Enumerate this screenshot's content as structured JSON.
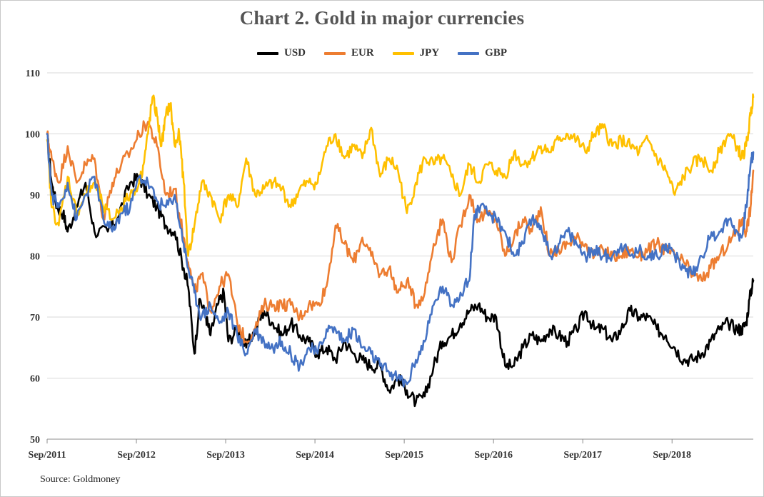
{
  "chart_data": {
    "type": "line",
    "title": "Chart 2. Gold in major currencies",
    "xlabel": "",
    "ylabel": "",
    "ylim": [
      50,
      110
    ],
    "yticks": [
      50,
      60,
      70,
      80,
      90,
      100,
      110
    ],
    "xlim": [
      2011.67,
      2019.58
    ],
    "xticks": [
      {
        "label": "Sep/2011",
        "x": 2011.67
      },
      {
        "label": "Sep/2012",
        "x": 2012.67
      },
      {
        "label": "Sep/2013",
        "x": 2013.67
      },
      {
        "label": "Sep/2014",
        "x": 2014.67
      },
      {
        "label": "Sep/2015",
        "x": 2015.67
      },
      {
        "label": "Sep/2016",
        "x": 2016.67
      },
      {
        "label": "Sep/2017",
        "x": 2017.67
      },
      {
        "label": "Sep/2018",
        "x": 2018.67
      }
    ],
    "grid": "horizontal",
    "legend": "top-center",
    "series": [
      {
        "name": "USD",
        "color": "#000000",
        "x": [
          2011.67,
          2011.72,
          2011.78,
          2011.85,
          2011.9,
          2012.0,
          2012.1,
          2012.2,
          2012.35,
          2012.45,
          2012.6,
          2012.7,
          2012.8,
          2012.9,
          2013.0,
          2013.1,
          2013.2,
          2013.25,
          2013.32,
          2013.38,
          2013.45,
          2013.5,
          2013.58,
          2013.65,
          2013.7,
          2013.8,
          2013.9,
          2014.0,
          2014.1,
          2014.2,
          2014.3,
          2014.4,
          2014.5,
          2014.6,
          2014.7,
          2014.8,
          2014.9,
          2015.0,
          2015.1,
          2015.2,
          2015.3,
          2015.4,
          2015.5,
          2015.6,
          2015.7,
          2015.8,
          2015.9,
          2016.0,
          2016.1,
          2016.2,
          2016.3,
          2016.4,
          2016.5,
          2016.6,
          2016.7,
          2016.8,
          2016.9,
          2017.0,
          2017.1,
          2017.2,
          2017.3,
          2017.4,
          2017.5,
          2017.6,
          2017.7,
          2017.8,
          2017.9,
          2018.0,
          2018.1,
          2018.2,
          2018.3,
          2018.4,
          2018.5,
          2018.6,
          2018.7,
          2018.8,
          2018.9,
          2019.0,
          2019.1,
          2019.2,
          2019.3,
          2019.4,
          2019.45,
          2019.5,
          2019.55,
          2019.58
        ],
        "values": [
          100,
          92,
          88,
          87,
          84,
          88,
          92,
          84,
          84,
          86,
          92,
          93,
          90,
          88,
          85,
          84,
          78,
          75,
          64,
          73,
          70,
          67,
          72,
          74,
          66,
          68,
          65,
          68,
          71,
          69,
          67,
          69,
          67,
          66,
          64,
          65,
          63,
          66,
          64,
          63,
          62,
          62,
          58,
          60,
          58,
          56,
          57,
          62,
          66,
          67,
          69,
          71,
          72,
          70,
          70,
          62,
          62,
          65,
          67,
          66,
          68,
          67,
          66,
          68,
          71,
          68,
          68,
          66,
          68,
          71,
          70,
          70,
          68,
          67,
          65,
          63,
          63,
          64,
          66,
          68,
          69,
          68,
          68,
          69,
          74,
          76
        ]
      },
      {
        "name": "EUR",
        "color": "#ED7D31",
        "x": [
          2011.67,
          2011.72,
          2011.8,
          2011.9,
          2012.0,
          2012.1,
          2012.2,
          2012.3,
          2012.4,
          2012.5,
          2012.6,
          2012.7,
          2012.8,
          2012.9,
          2013.0,
          2013.1,
          2013.2,
          2013.25,
          2013.32,
          2013.4,
          2013.5,
          2013.6,
          2013.7,
          2013.8,
          2013.9,
          2014.0,
          2014.1,
          2014.2,
          2014.3,
          2014.4,
          2014.5,
          2014.6,
          2014.7,
          2014.8,
          2014.9,
          2015.0,
          2015.1,
          2015.2,
          2015.3,
          2015.4,
          2015.5,
          2015.6,
          2015.7,
          2015.8,
          2015.9,
          2016.0,
          2016.1,
          2016.2,
          2016.3,
          2016.4,
          2016.5,
          2016.6,
          2016.7,
          2016.8,
          2016.9,
          2017.0,
          2017.1,
          2017.2,
          2017.3,
          2017.4,
          2017.5,
          2017.6,
          2017.7,
          2017.8,
          2017.9,
          2018.0,
          2018.1,
          2018.2,
          2018.3,
          2018.4,
          2018.5,
          2018.6,
          2018.7,
          2018.8,
          2018.9,
          2019.0,
          2019.1,
          2019.2,
          2019.3,
          2019.4,
          2019.45,
          2019.5,
          2019.55,
          2019.58
        ],
        "values": [
          100,
          96,
          92,
          98,
          92,
          95,
          96,
          86,
          92,
          95,
          97,
          100,
          102,
          98,
          90,
          91,
          83,
          79,
          74,
          77,
          71,
          75,
          77,
          69,
          66,
          68,
          72,
          72,
          72,
          72,
          70,
          72,
          72,
          75,
          85,
          82,
          79,
          83,
          80,
          77,
          78,
          74,
          76,
          72,
          74,
          82,
          86,
          79,
          85,
          90,
          86,
          87,
          86,
          80,
          83,
          86,
          84,
          88,
          80,
          81,
          82,
          83,
          82,
          80,
          81,
          80,
          80,
          81,
          80,
          81,
          82,
          81,
          80,
          79,
          77,
          76,
          78,
          80,
          82,
          84,
          86,
          84,
          88,
          94
        ]
      },
      {
        "name": "JPY",
        "color": "#FFC000",
        "x": [
          2011.67,
          2011.72,
          2011.8,
          2011.9,
          2012.0,
          2012.1,
          2012.2,
          2012.3,
          2012.4,
          2012.5,
          2012.6,
          2012.7,
          2012.75,
          2012.8,
          2012.85,
          2012.9,
          2012.95,
          2013.0,
          2013.05,
          2013.1,
          2013.15,
          2013.2,
          2013.25,
          2013.32,
          2013.4,
          2013.5,
          2013.6,
          2013.7,
          2013.8,
          2013.9,
          2014.0,
          2014.1,
          2014.2,
          2014.3,
          2014.4,
          2014.5,
          2014.6,
          2014.7,
          2014.8,
          2014.9,
          2015.0,
          2015.1,
          2015.2,
          2015.3,
          2015.4,
          2015.5,
          2015.6,
          2015.7,
          2015.8,
          2015.9,
          2016.0,
          2016.1,
          2016.2,
          2016.3,
          2016.4,
          2016.5,
          2016.6,
          2016.7,
          2016.8,
          2016.9,
          2017.0,
          2017.1,
          2017.2,
          2017.3,
          2017.4,
          2017.5,
          2017.6,
          2017.7,
          2017.8,
          2017.9,
          2018.0,
          2018.1,
          2018.2,
          2018.3,
          2018.4,
          2018.5,
          2018.6,
          2018.7,
          2018.8,
          2018.9,
          2019.0,
          2019.1,
          2019.2,
          2019.3,
          2019.4,
          2019.45,
          2019.5,
          2019.55,
          2019.58
        ],
        "values": [
          99,
          88,
          85,
          93,
          87,
          90,
          92,
          88,
          86,
          88,
          90,
          92,
          95,
          100,
          106,
          103,
          98,
          103,
          105,
          98,
          100,
          92,
          80,
          85,
          92,
          90,
          86,
          90,
          88,
          96,
          90,
          91,
          92,
          91,
          88,
          91,
          92,
          92,
          98,
          100,
          96,
          98,
          96,
          101,
          93,
          96,
          94,
          87,
          92,
          96,
          95,
          96,
          93,
          90,
          95,
          92,
          95,
          94,
          93,
          97,
          95,
          96,
          98,
          97,
          99,
          100,
          99,
          97,
          100,
          101,
          98,
          99,
          98,
          97,
          99,
          96,
          94,
          90,
          93,
          95,
          96,
          94,
          97,
          100,
          98,
          96,
          98,
          103,
          106
        ]
      },
      {
        "name": "GBP",
        "color": "#4472C4",
        "x": [
          2011.67,
          2011.72,
          2011.8,
          2011.9,
          2012.0,
          2012.1,
          2012.2,
          2012.3,
          2012.4,
          2012.5,
          2012.6,
          2012.7,
          2012.8,
          2012.9,
          2013.0,
          2013.1,
          2013.2,
          2013.25,
          2013.32,
          2013.4,
          2013.5,
          2013.6,
          2013.7,
          2013.8,
          2013.9,
          2014.0,
          2014.1,
          2014.2,
          2014.3,
          2014.4,
          2014.5,
          2014.6,
          2014.7,
          2014.8,
          2014.9,
          2015.0,
          2015.1,
          2015.2,
          2015.3,
          2015.4,
          2015.5,
          2015.6,
          2015.7,
          2015.8,
          2015.9,
          2016.0,
          2016.1,
          2016.2,
          2016.3,
          2016.4,
          2016.45,
          2016.5,
          2016.6,
          2016.7,
          2016.8,
          2016.9,
          2017.0,
          2017.1,
          2017.2,
          2017.3,
          2017.4,
          2017.5,
          2017.6,
          2017.7,
          2017.8,
          2017.9,
          2018.0,
          2018.1,
          2018.2,
          2018.3,
          2018.4,
          2018.5,
          2018.6,
          2018.7,
          2018.8,
          2018.9,
          2019.0,
          2019.1,
          2019.2,
          2019.3,
          2019.4,
          2019.45,
          2019.5,
          2019.55,
          2019.58
        ],
        "values": [
          100,
          90,
          88,
          92,
          86,
          90,
          93,
          86,
          84,
          87,
          88,
          93,
          92,
          89,
          88,
          90,
          82,
          78,
          74,
          70,
          72,
          69,
          71,
          67,
          64,
          68,
          66,
          65,
          66,
          64,
          62,
          65,
          64,
          68,
          68,
          66,
          68,
          65,
          64,
          62,
          61,
          60,
          59,
          63,
          66,
          72,
          75,
          72,
          74,
          76,
          86,
          88,
          87,
          86,
          84,
          80,
          82,
          86,
          85,
          80,
          82,
          84,
          82,
          80,
          81,
          80,
          80,
          82,
          80,
          81,
          80,
          80,
          82,
          80,
          78,
          77,
          80,
          83,
          84,
          86,
          84,
          83,
          88,
          95,
          97
        ]
      }
    ],
    "source": "Source: Goldmoney"
  }
}
